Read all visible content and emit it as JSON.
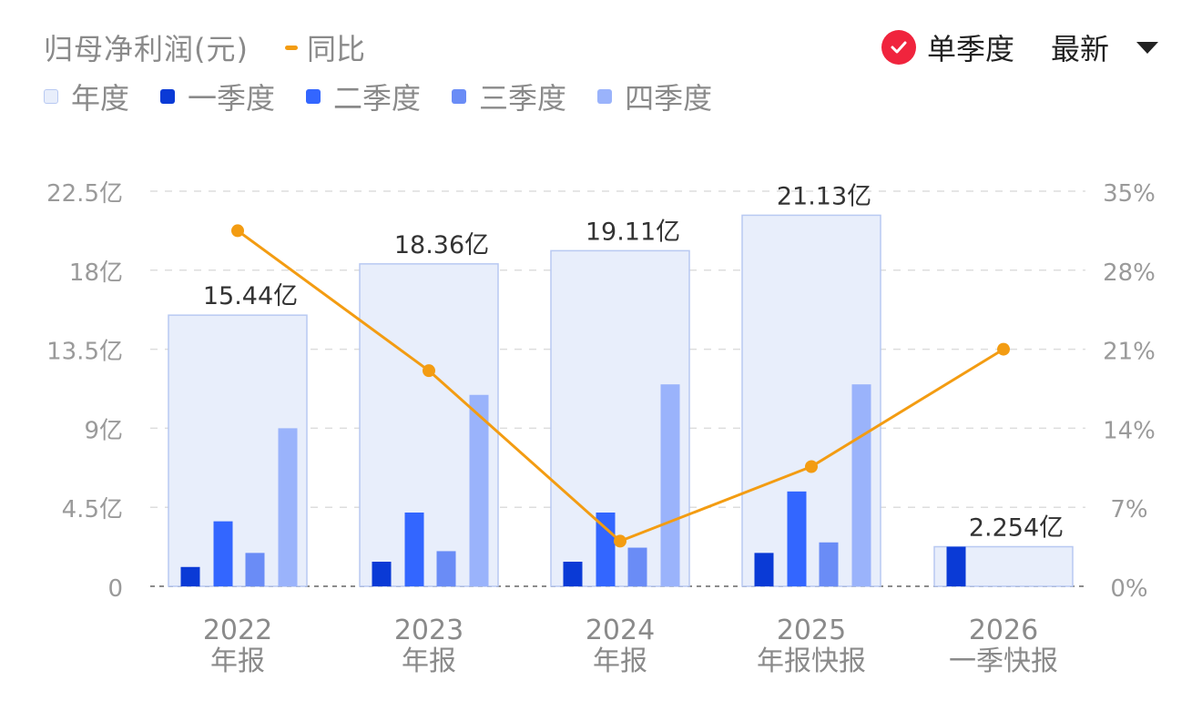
{
  "header": {
    "title": "归母净利润(元)",
    "yoy_label": "同比",
    "quarterly_label": "单季度",
    "latest_label": "最新"
  },
  "legend": [
    {
      "label": "年度",
      "color": "#e8eefb"
    },
    {
      "label": "一季度",
      "color": "#0a3ad6"
    },
    {
      "label": "二季度",
      "color": "#3366ff"
    },
    {
      "label": "三季度",
      "color": "#6a8cf6"
    },
    {
      "label": "四季度",
      "color": "#9ab3fb"
    }
  ],
  "colors": {
    "annual_fill": "#e8eefb",
    "annual_border": "#b8c9f2",
    "q1": "#0a3ad6",
    "q2": "#3366ff",
    "q3": "#6a8cf6",
    "q4": "#9ab3fb",
    "yoy_line": "#f39c12",
    "check_badge": "#f0243d"
  },
  "chart_data": {
    "type": "bar",
    "categories": [
      [
        "2022",
        "年报"
      ],
      [
        "2023",
        "年报"
      ],
      [
        "2024",
        "年报"
      ],
      [
        "2025",
        "年报快报"
      ],
      [
        "2026",
        "一季快报"
      ]
    ],
    "series": [
      {
        "name": "年度",
        "values": [
          15.44,
          18.36,
          19.11,
          21.13,
          2.254
        ]
      },
      {
        "name": "一季度",
        "values": [
          1.1,
          1.4,
          1.4,
          1.9,
          2.254
        ]
      },
      {
        "name": "二季度",
        "values": [
          3.7,
          4.2,
          4.2,
          5.4,
          null
        ]
      },
      {
        "name": "三季度",
        "values": [
          1.9,
          2.0,
          2.2,
          2.5,
          null
        ]
      },
      {
        "name": "四季度",
        "values": [
          9.0,
          10.9,
          11.5,
          11.5,
          null
        ]
      },
      {
        "name": "同比",
        "axis": "right",
        "values": [
          31.5,
          19.1,
          4.0,
          10.6,
          21.0
        ]
      }
    ],
    "annual_labels": [
      "15.44亿",
      "18.36亿",
      "19.11亿",
      "21.13亿",
      "2.254亿"
    ],
    "y_left": {
      "min": 0,
      "max": 22.5,
      "ticks": [
        0,
        4.5,
        9,
        13.5,
        18,
        22.5
      ],
      "tick_labels": [
        "0",
        "4.5亿",
        "9亿",
        "13.5亿",
        "18亿",
        "22.5亿"
      ]
    },
    "y_right": {
      "min": 0,
      "max": 35,
      "ticks": [
        0,
        7,
        14,
        21,
        28,
        35
      ],
      "tick_labels": [
        "0%",
        "7%",
        "14%",
        "21%",
        "28%",
        "35%"
      ]
    },
    "grid": true
  }
}
